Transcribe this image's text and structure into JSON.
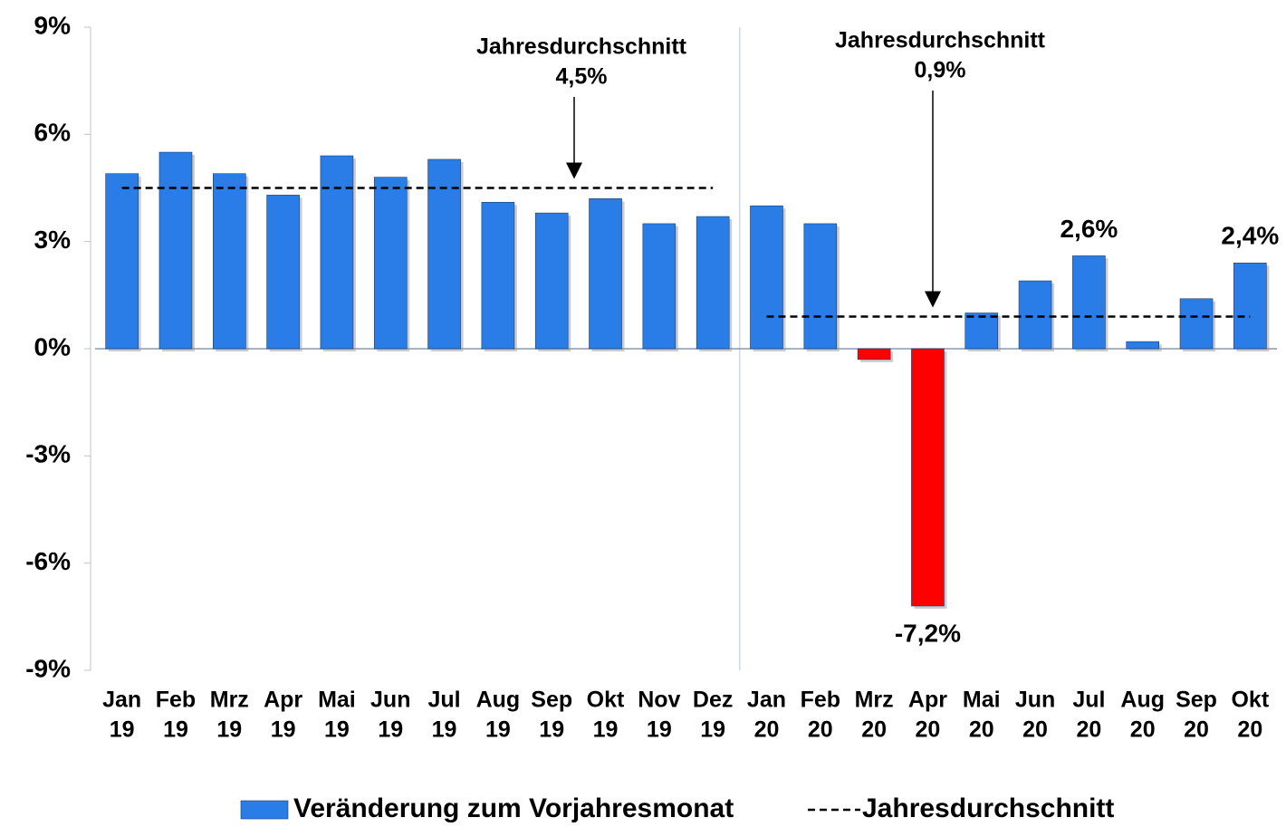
{
  "chart_data": {
    "type": "bar",
    "categories": [
      [
        "Jan",
        "19"
      ],
      [
        "Feb",
        "19"
      ],
      [
        "Mrz",
        "19"
      ],
      [
        "Apr",
        "19"
      ],
      [
        "Mai",
        "19"
      ],
      [
        "Jun",
        "19"
      ],
      [
        "Jul",
        "19"
      ],
      [
        "Aug",
        "19"
      ],
      [
        "Sep",
        "19"
      ],
      [
        "Okt",
        "19"
      ],
      [
        "Nov",
        "19"
      ],
      [
        "Dez",
        "19"
      ],
      [
        "Jan",
        "20"
      ],
      [
        "Feb",
        "20"
      ],
      [
        "Mrz",
        "20"
      ],
      [
        "Apr",
        "20"
      ],
      [
        "Mai",
        "20"
      ],
      [
        "Jun",
        "20"
      ],
      [
        "Jul",
        "20"
      ],
      [
        "Aug",
        "20"
      ],
      [
        "Sep",
        "20"
      ],
      [
        "Okt",
        "20"
      ]
    ],
    "series": [
      {
        "name": "Veränderung zum Vorjahresmonat",
        "type": "bar",
        "color": "#2a7de6",
        "negative_color": "#ff0000",
        "values": [
          4.9,
          5.5,
          4.9,
          4.3,
          5.4,
          4.8,
          5.3,
          4.1,
          3.8,
          4.2,
          3.5,
          3.7,
          4.0,
          3.5,
          -0.3,
          -7.2,
          1.0,
          1.9,
          2.6,
          0.2,
          1.4,
          2.4
        ],
        "value_labels": [
          null,
          null,
          null,
          null,
          null,
          null,
          null,
          null,
          null,
          null,
          null,
          null,
          null,
          null,
          null,
          "-7,2%",
          null,
          null,
          "2,6%",
          null,
          null,
          "2,4%"
        ]
      },
      {
        "name": "Jahresdurchschnitt",
        "type": "line",
        "color": "#000000",
        "dashed": true,
        "values": [
          4.5,
          4.5,
          4.5,
          4.5,
          4.5,
          4.5,
          4.5,
          4.5,
          4.5,
          4.5,
          4.5,
          4.5,
          0.9,
          0.9,
          0.9,
          0.9,
          0.9,
          0.9,
          0.9,
          0.9,
          0.9,
          0.9
        ]
      }
    ],
    "annotations": [
      {
        "title": "Jahresdurchschnitt",
        "label": "4,5%"
      },
      {
        "title": "Jahresdurchschnitt",
        "label": "0,9%"
      }
    ],
    "ylim": [
      -9,
      9
    ],
    "yticks": [
      {
        "value": -9,
        "label": "-9%"
      },
      {
        "value": -6,
        "label": "-6%"
      },
      {
        "value": -3,
        "label": "-3%"
      },
      {
        "value": 0,
        "label": "0%"
      },
      {
        "value": 3,
        "label": "3%"
      },
      {
        "value": 6,
        "label": "6%"
      },
      {
        "value": 9,
        "label": "9%"
      }
    ],
    "legend": "bottom"
  }
}
